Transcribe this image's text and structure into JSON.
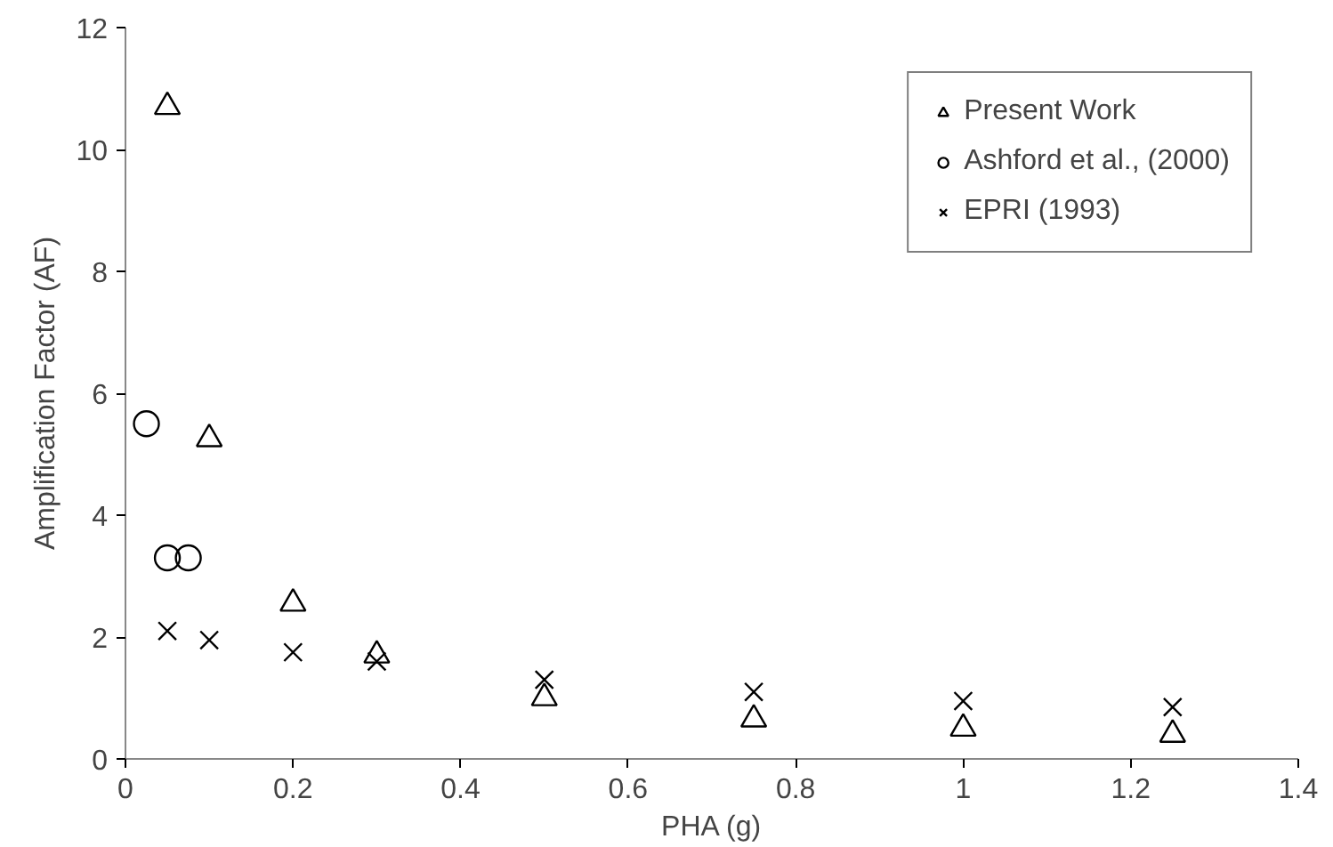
{
  "chart_data": {
    "type": "scatter",
    "xlabel": "PHA (g)",
    "ylabel": "Amplification Factor (AF)",
    "xlim": [
      0,
      1.4
    ],
    "xticks": [
      0,
      0.2,
      0.4,
      0.6,
      0.8,
      1,
      1.2,
      1.4
    ],
    "ylim": [
      0,
      12
    ],
    "yticks": [
      0,
      2,
      4,
      6,
      8,
      10,
      12
    ],
    "grid": false,
    "legend": "top right",
    "series": [
      {
        "name": "Present Work",
        "color": "#000000",
        "marker": "triangle",
        "x": [
          0.05,
          0.1,
          0.2,
          0.3,
          0.5,
          0.75,
          1.0,
          1.25
        ],
        "values": [
          10.7,
          5.25,
          2.55,
          1.7,
          1.0,
          0.65,
          0.5,
          0.4
        ]
      },
      {
        "name": "Ashford et al., (2000)",
        "color": "#000000",
        "marker": "circle",
        "x": [
          0.025,
          0.05,
          0.075
        ],
        "values": [
          5.5,
          3.3,
          3.3
        ]
      },
      {
        "name": "EPRI (1993)",
        "color": "#000000",
        "marker": "cross",
        "x": [
          0.05,
          0.1,
          0.2,
          0.3,
          0.5,
          0.75,
          1.0,
          1.25
        ],
        "values": [
          2.1,
          1.95,
          1.75,
          1.6,
          1.3,
          1.1,
          0.95,
          0.85
        ]
      }
    ]
  }
}
